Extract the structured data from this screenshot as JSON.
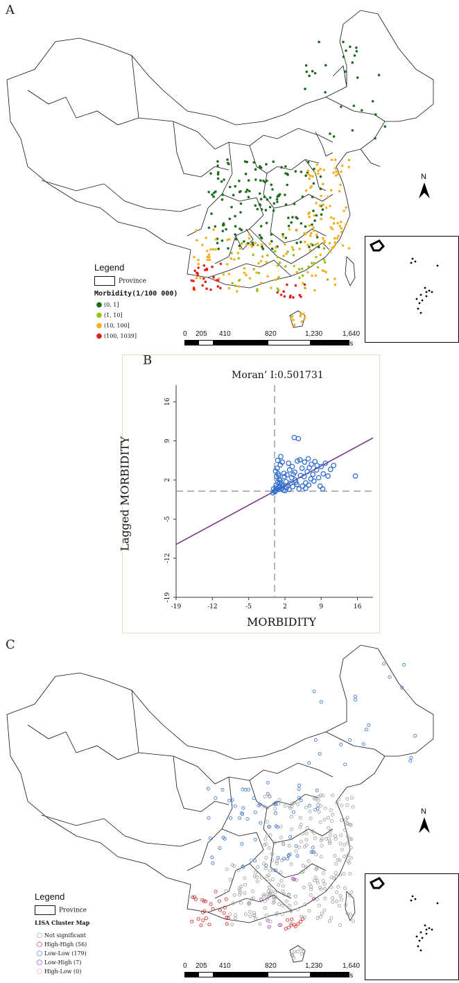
{
  "panel_a": {
    "letter": "A",
    "legend_title": "Legend",
    "province_label": "Province",
    "subtitle": "Morbidity(1/100 000)",
    "classes": [
      {
        "label": "(0, 1]",
        "color": "#1e6b1e"
      },
      {
        "label": "(1, 10]",
        "color": "#9bc21a"
      },
      {
        "label": "(10, 100]",
        "color": "#f0b21e"
      },
      {
        "label": "(100, 1039]",
        "color": "#e3201b"
      }
    ],
    "scale_labels": [
      "0",
      "205",
      "410",
      "820",
      "1,230",
      "1,640"
    ],
    "scale_unit": "Kilometers",
    "north": "N"
  },
  "panel_b": {
    "letter": "B",
    "title": "Moran’ I:0.501731",
    "xlabel": "MORBIDITY",
    "ylabel": "Lagged MORBIDITY"
  },
  "panel_c": {
    "letter": "C",
    "legend_title": "Legend",
    "province_label": "Province",
    "subtitle": "LISA Cluster Map",
    "classes": [
      {
        "label": "Not significant",
        "color": "#9a9a9a"
      },
      {
        "label": "High-High (56)",
        "color": "#d42020"
      },
      {
        "label": "Low-Low (179)",
        "color": "#2f6fd0"
      },
      {
        "label": "Low-High (7)",
        "color": "#b020b0"
      },
      {
        "label": "High-Low (0)",
        "color": "#f0a0a0"
      }
    ],
    "scale_labels": [
      "0",
      "205",
      "410",
      "820",
      "1,230",
      "1,640"
    ],
    "scale_unit": "Kilometers",
    "north": "N"
  },
  "chart_data": {
    "type": "scatter",
    "title": "Moran’ I:0.501731",
    "xlabel": "MORBIDITY",
    "ylabel": "Lagged MORBIDITY",
    "xlim": [
      -19,
      19
    ],
    "ylim": [
      -19,
      19
    ],
    "xticks": [
      -19,
      -12,
      -5,
      2,
      9,
      16
    ],
    "yticks": [
      -19,
      -12,
      -5,
      2,
      9,
      16
    ],
    "regression_slope": 0.501731,
    "regression_color": "#7a3a8a",
    "point_color": "#2f6fd0",
    "points": [
      [
        0.0,
        0.0
      ],
      [
        -0.3,
        -0.3
      ],
      [
        0.2,
        0.1
      ],
      [
        0.5,
        0.4
      ],
      [
        0.8,
        0.6
      ],
      [
        1.0,
        0.9
      ],
      [
        1.3,
        1.2
      ],
      [
        -0.2,
        0.4
      ],
      [
        0.3,
        1.1
      ],
      [
        0.6,
        1.6
      ],
      [
        0.9,
        2.1
      ],
      [
        0.4,
        2.6
      ],
      [
        0.7,
        3.1
      ],
      [
        0.2,
        3.6
      ],
      [
        0.5,
        4.1
      ],
      [
        0.8,
        2.8
      ],
      [
        1.1,
        1.9
      ],
      [
        1.4,
        0.5
      ],
      [
        1.7,
        0.2
      ],
      [
        2.0,
        0.1
      ],
      [
        2.3,
        0.6
      ],
      [
        2.6,
        1.0
      ],
      [
        3.0,
        1.4
      ],
      [
        3.3,
        2.4
      ],
      [
        3.6,
        3.0
      ],
      [
        4.0,
        2.0
      ],
      [
        4.3,
        1.2
      ],
      [
        4.7,
        0.4
      ],
      [
        5.0,
        2.8
      ],
      [
        5.3,
        4.1
      ],
      [
        5.7,
        2.6
      ],
      [
        6.0,
        1.5
      ],
      [
        6.3,
        3.5
      ],
      [
        6.7,
        4.2
      ],
      [
        7.0,
        2.2
      ],
      [
        7.4,
        3.0
      ],
      [
        7.8,
        5.3
      ],
      [
        8.1,
        3.8
      ],
      [
        8.5,
        2.4
      ],
      [
        9.0,
        4.4
      ],
      [
        9.4,
        3.1
      ],
      [
        9.8,
        5.0
      ],
      [
        10.3,
        2.7
      ],
      [
        10.8,
        3.9
      ],
      [
        11.4,
        4.6
      ],
      [
        6.0,
        0.5
      ],
      [
        8.8,
        0.9
      ],
      [
        9.3,
        0.4
      ],
      [
        3.8,
        9.6
      ],
      [
        4.6,
        9.4
      ],
      [
        1.2,
        6.2
      ],
      [
        1.5,
        5.2
      ],
      [
        2.7,
        5.0
      ],
      [
        3.4,
        4.4
      ],
      [
        4.9,
        5.6
      ],
      [
        5.8,
        5.2
      ],
      [
        7.1,
        4.8
      ],
      [
        8.2,
        4.6
      ],
      [
        15.6,
        2.7
      ],
      [
        1.8,
        3.2
      ],
      [
        2.4,
        2.9
      ],
      [
        1.1,
        4.7
      ],
      [
        0.6,
        5.5
      ],
      [
        2.9,
        3.8
      ],
      [
        3.9,
        3.4
      ],
      [
        4.4,
        5.4
      ],
      [
        6.5,
        5.8
      ],
      [
        7.6,
        1.8
      ],
      [
        0.3,
        0.6
      ],
      [
        0.9,
        0.3
      ],
      [
        1.6,
        0.9
      ],
      [
        2.2,
        1.7
      ],
      [
        2.8,
        0.3
      ],
      [
        3.5,
        0.8
      ],
      [
        4.1,
        1.6
      ],
      [
        5.4,
        0.9
      ],
      [
        6.6,
        1.1
      ],
      [
        0.1,
        -0.1
      ],
      [
        1.9,
        2.6
      ],
      [
        1.0,
        1.5
      ]
    ]
  }
}
